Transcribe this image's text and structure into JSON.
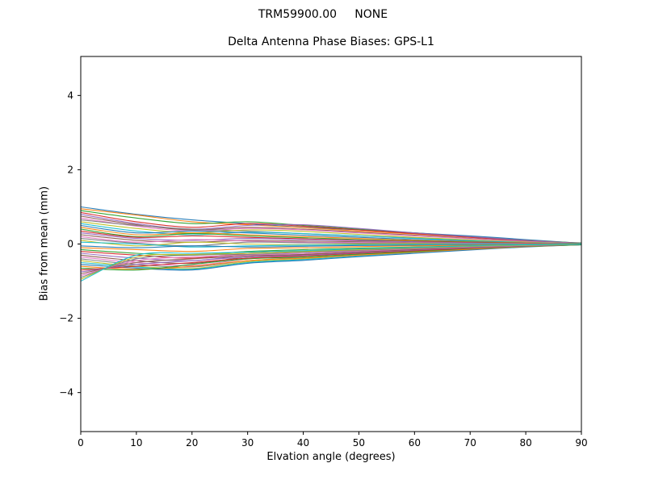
{
  "figure": {
    "suptitle": "TRM59900.00     NONE",
    "title": "Delta Antenna Phase Biases: GPS-L1"
  },
  "chart_data": {
    "type": "line",
    "suptitle": "TRM59900.00     NONE",
    "title": "Delta Antenna Phase Biases: GPS-L1",
    "xlabel": "Elvation angle (degrees)",
    "ylabel": "Bias from mean (mm)",
    "xlim": [
      0,
      90
    ],
    "ylim": [
      -5.05,
      5.05
    ],
    "xticks": [
      0,
      10,
      20,
      30,
      40,
      50,
      60,
      70,
      80,
      90
    ],
    "yticks": [
      -4,
      -2,
      0,
      2,
      4
    ],
    "grid": false,
    "legend": false,
    "x": [
      0,
      10,
      20,
      30,
      40,
      50,
      60,
      70,
      80,
      90
    ],
    "palette": [
      "#1f77b4",
      "#ff7f0e",
      "#2ca02c",
      "#d62728",
      "#9467bd",
      "#8c564b",
      "#e377c2",
      "#7f7f7f",
      "#bcbd22",
      "#17becf"
    ],
    "series": [
      {
        "name": "s01",
        "values": [
          1.0,
          0.8,
          0.65,
          0.55,
          0.45,
          0.38,
          0.3,
          0.22,
          0.12,
          0.02
        ]
      },
      {
        "name": "s02",
        "values": [
          0.95,
          0.78,
          0.6,
          0.52,
          0.44,
          0.35,
          0.27,
          0.18,
          0.1,
          0.02
        ]
      },
      {
        "name": "s03",
        "values": [
          0.9,
          0.7,
          0.55,
          0.6,
          0.5,
          0.4,
          0.3,
          0.2,
          0.1,
          0.03
        ]
      },
      {
        "name": "s04",
        "values": [
          0.85,
          0.6,
          0.45,
          0.55,
          0.48,
          0.38,
          0.28,
          0.18,
          0.09,
          0.02
        ]
      },
      {
        "name": "s05",
        "values": [
          0.8,
          0.55,
          0.4,
          0.5,
          0.52,
          0.42,
          0.3,
          0.2,
          0.1,
          0.02
        ]
      },
      {
        "name": "s06",
        "values": [
          0.75,
          0.52,
          0.38,
          0.45,
          0.4,
          0.32,
          0.24,
          0.15,
          0.08,
          0.01
        ]
      },
      {
        "name": "s07",
        "values": [
          0.7,
          0.48,
          0.35,
          0.42,
          0.38,
          0.3,
          0.22,
          0.14,
          0.07,
          0.01
        ]
      },
      {
        "name": "s08",
        "values": [
          0.65,
          0.5,
          0.4,
          0.35,
          0.28,
          0.22,
          0.16,
          0.1,
          0.05,
          0.01
        ]
      },
      {
        "name": "s09",
        "values": [
          0.6,
          0.42,
          0.3,
          0.38,
          0.34,
          0.26,
          0.18,
          0.11,
          0.05,
          0.01
        ]
      },
      {
        "name": "s10",
        "values": [
          0.55,
          0.35,
          0.25,
          0.32,
          0.28,
          0.22,
          0.15,
          0.09,
          0.04,
          0.01
        ]
      },
      {
        "name": "s11",
        "values": [
          0.5,
          0.3,
          0.35,
          0.3,
          0.24,
          0.18,
          0.12,
          0.07,
          0.03,
          0.0
        ]
      },
      {
        "name": "s12",
        "values": [
          0.45,
          0.25,
          0.3,
          0.25,
          0.2,
          0.15,
          0.1,
          0.06,
          0.03,
          0.0
        ]
      },
      {
        "name": "s13",
        "values": [
          0.4,
          0.2,
          0.28,
          0.22,
          0.17,
          0.12,
          0.08,
          0.05,
          0.02,
          0.0
        ]
      },
      {
        "name": "s14",
        "values": [
          0.35,
          0.18,
          0.22,
          0.18,
          0.14,
          0.1,
          0.07,
          0.04,
          0.02,
          0.0
        ]
      },
      {
        "name": "s15",
        "values": [
          0.3,
          0.15,
          0.1,
          0.15,
          0.12,
          0.09,
          0.06,
          0.03,
          0.01,
          0.0
        ]
      },
      {
        "name": "s16",
        "values": [
          0.25,
          0.1,
          0.05,
          0.1,
          0.08,
          0.06,
          0.04,
          0.02,
          0.01,
          0.0
        ]
      },
      {
        "name": "s17",
        "values": [
          0.2,
          0.05,
          0.12,
          0.08,
          0.05,
          0.04,
          0.03,
          0.02,
          0.01,
          0.0
        ]
      },
      {
        "name": "s18",
        "values": [
          0.15,
          0.02,
          -0.05,
          0.05,
          0.03,
          0.02,
          0.02,
          0.01,
          0.0,
          0.0
        ]
      },
      {
        "name": "s19",
        "values": [
          0.1,
          -0.05,
          0.05,
          0.0,
          -0.02,
          0.0,
          0.01,
          0.0,
          0.0,
          0.0
        ]
      },
      {
        "name": "s20",
        "values": [
          0.05,
          0.0,
          -0.08,
          -0.05,
          -0.03,
          -0.02,
          -0.01,
          0.0,
          0.0,
          0.0
        ]
      },
      {
        "name": "s21",
        "values": [
          -0.05,
          -0.1,
          -0.05,
          -0.08,
          -0.06,
          -0.04,
          -0.03,
          -0.02,
          -0.01,
          0.0
        ]
      },
      {
        "name": "s22",
        "values": [
          -0.1,
          -0.15,
          -0.2,
          -0.12,
          -0.1,
          -0.07,
          -0.05,
          -0.03,
          -0.01,
          0.0
        ]
      },
      {
        "name": "s23",
        "values": [
          -0.15,
          -0.25,
          -0.3,
          -0.2,
          -0.15,
          -0.11,
          -0.08,
          -0.05,
          -0.02,
          0.0
        ]
      },
      {
        "name": "s24",
        "values": [
          -0.2,
          -0.3,
          -0.38,
          -0.25,
          -0.2,
          -0.15,
          -0.1,
          -0.06,
          -0.03,
          -0.01
        ]
      },
      {
        "name": "s25",
        "values": [
          -0.25,
          -0.38,
          -0.45,
          -0.3,
          -0.25,
          -0.18,
          -0.13,
          -0.08,
          -0.04,
          -0.01
        ]
      },
      {
        "name": "s26",
        "values": [
          -0.3,
          -0.45,
          -0.52,
          -0.35,
          -0.28,
          -0.22,
          -0.15,
          -0.1,
          -0.05,
          -0.01
        ]
      },
      {
        "name": "s27",
        "values": [
          -0.35,
          -0.5,
          -0.58,
          -0.4,
          -0.32,
          -0.25,
          -0.18,
          -0.11,
          -0.05,
          -0.01
        ]
      },
      {
        "name": "s28",
        "values": [
          -0.4,
          -0.55,
          -0.62,
          -0.45,
          -0.36,
          -0.28,
          -0.2,
          -0.13,
          -0.06,
          -0.02
        ]
      },
      {
        "name": "s29",
        "values": [
          -0.45,
          -0.6,
          -0.66,
          -0.48,
          -0.4,
          -0.3,
          -0.22,
          -0.14,
          -0.07,
          -0.02
        ]
      },
      {
        "name": "s30",
        "values": [
          -0.5,
          -0.62,
          -0.68,
          -0.5,
          -0.42,
          -0.32,
          -0.23,
          -0.15,
          -0.07,
          -0.02
        ]
      },
      {
        "name": "s31",
        "values": [
          -0.55,
          -0.65,
          -0.7,
          -0.52,
          -0.44,
          -0.34,
          -0.25,
          -0.16,
          -0.08,
          -0.02
        ]
      },
      {
        "name": "s32",
        "values": [
          -0.6,
          -0.68,
          -0.6,
          -0.45,
          -0.38,
          -0.3,
          -0.22,
          -0.14,
          -0.07,
          -0.02
        ]
      },
      {
        "name": "s33",
        "values": [
          -0.65,
          -0.7,
          -0.55,
          -0.4,
          -0.35,
          -0.27,
          -0.2,
          -0.12,
          -0.06,
          -0.02
        ]
      },
      {
        "name": "s34",
        "values": [
          -0.7,
          -0.6,
          -0.5,
          -0.38,
          -0.32,
          -0.25,
          -0.18,
          -0.11,
          -0.05,
          -0.01
        ]
      },
      {
        "name": "s35",
        "values": [
          -0.75,
          -0.55,
          -0.45,
          -0.35,
          -0.3,
          -0.23,
          -0.16,
          -0.1,
          -0.05,
          -0.01
        ]
      },
      {
        "name": "s36",
        "values": [
          -0.8,
          -0.5,
          -0.4,
          -0.32,
          -0.28,
          -0.21,
          -0.15,
          -0.09,
          -0.04,
          -0.01
        ]
      },
      {
        "name": "s37",
        "values": [
          -0.85,
          -0.45,
          -0.35,
          -0.3,
          -0.25,
          -0.19,
          -0.13,
          -0.08,
          -0.04,
          -0.01
        ]
      },
      {
        "name": "s38",
        "values": [
          -0.9,
          -0.4,
          -0.3,
          -0.28,
          -0.22,
          -0.17,
          -0.12,
          -0.07,
          -0.03,
          -0.01
        ]
      },
      {
        "name": "s39",
        "values": [
          -0.95,
          -0.35,
          -0.28,
          -0.25,
          -0.2,
          -0.15,
          -0.1,
          -0.06,
          -0.03,
          -0.01
        ]
      },
      {
        "name": "s40",
        "values": [
          -1.0,
          -0.3,
          -0.25,
          -0.22,
          -0.18,
          -0.13,
          -0.09,
          -0.05,
          -0.02,
          -0.01
        ]
      }
    ]
  }
}
